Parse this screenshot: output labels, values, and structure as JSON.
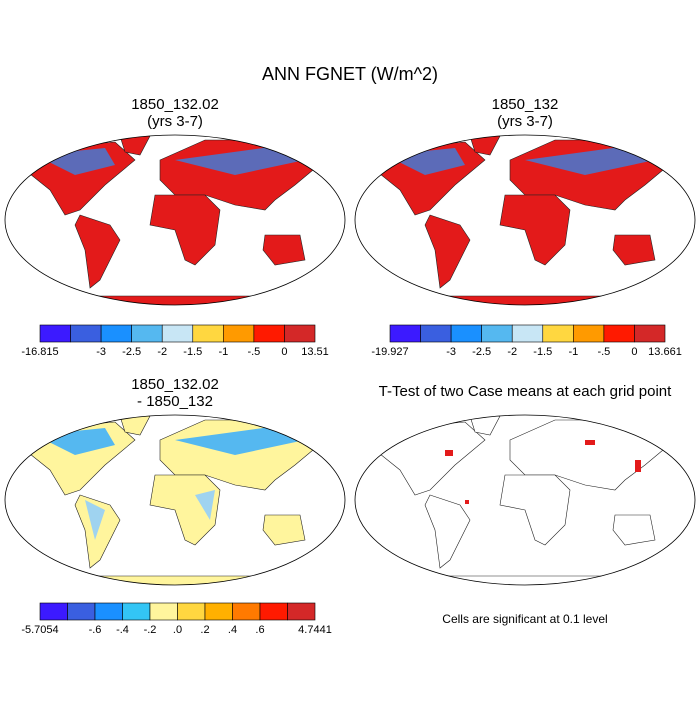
{
  "title": "ANN FGNET (W/m^2)",
  "panels": [
    {
      "title_lines": [
        "1850_132.02",
        "(yrs 3-7)"
      ],
      "colorbar": {
        "colors": [
          "#3c1aff",
          "#3a5fe0",
          "#1a90ff",
          "#55b8f0",
          "#c8e6f5",
          "#ffd740",
          "#ff9a00",
          "#ff1a00",
          "#d42828"
        ],
        "labels": [
          "-16.815",
          null,
          "-3",
          "-2.5",
          "-2",
          "-1.5",
          "-1",
          "-.5",
          "0",
          "13.51"
        ]
      }
    },
    {
      "title_lines": [
        "1850_132",
        "(yrs 3-7)"
      ],
      "colorbar": {
        "colors": [
          "#3c1aff",
          "#3a5fe0",
          "#1a90ff",
          "#55b8f0",
          "#c8e6f5",
          "#ffd740",
          "#ff9a00",
          "#ff1a00",
          "#d42828"
        ],
        "labels": [
          "-19.927",
          null,
          "-3",
          "-2.5",
          "-2",
          "-1.5",
          "-1",
          "-.5",
          "0",
          "13.661"
        ]
      }
    },
    {
      "title_lines": [
        "1850_132.02",
        "- 1850_132"
      ],
      "colorbar": {
        "colors": [
          "#3c1aff",
          "#3a5fe0",
          "#1a90ff",
          "#33c5f5",
          "#fff59d",
          "#ffd740",
          "#ffb000",
          "#ff7a00",
          "#ff1a00",
          "#d42828"
        ],
        "labels": [
          "-5.7054",
          null,
          "-.6",
          "-.4",
          "-.2",
          ".0",
          ".2",
          ".4",
          ".6",
          null,
          "4.7441"
        ]
      }
    },
    {
      "title_lines": [
        "T-Test of two Case means at each grid point"
      ],
      "note": "Cells are significant at 0.1 level"
    }
  ]
}
